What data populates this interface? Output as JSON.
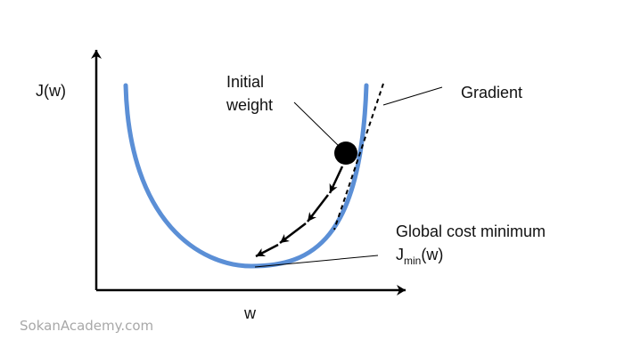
{
  "labels": {
    "y_axis": "J(w)",
    "x_axis": "w",
    "initial_weight_line1": "Initial",
    "initial_weight_line2": "weight",
    "gradient": "Gradient",
    "global_min": "Global cost minimum",
    "jmin_main": "J",
    "jmin_sub": "min",
    "jmin_arg": "(w)"
  },
  "watermark": "SokanAcademy.com",
  "colors": {
    "curve": "#5b8fd6",
    "axes": "#000000",
    "ball": "#000000",
    "arrows": "#000000",
    "tangent": "#000000",
    "leader": "#000000",
    "watermark": "#a8a8a8"
  }
}
